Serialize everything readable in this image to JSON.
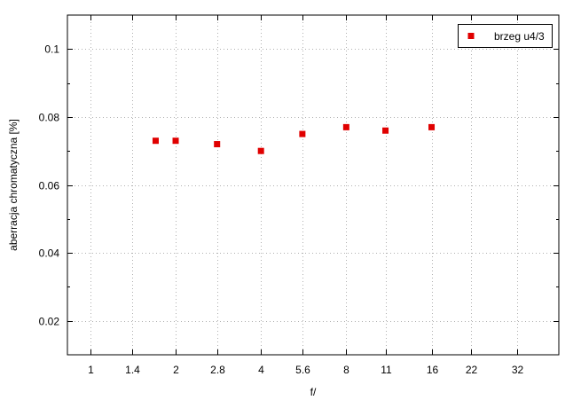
{
  "chart_data": {
    "type": "scatter",
    "title": "",
    "xlabel": "f/",
    "ylabel": "aberracja chromatyczna [%]",
    "x_scale": "log2",
    "x_ticks": [
      "1",
      "1.4",
      "2",
      "2.8",
      "4",
      "5.6",
      "8",
      "11",
      "16",
      "22",
      "32"
    ],
    "xlim_stops": [
      0.83,
      45
    ],
    "ylim": [
      0.01,
      0.11
    ],
    "y_ticks": [
      0.02,
      0.04,
      0.06,
      0.08,
      0.1
    ],
    "y_tick_labels": [
      "0.02",
      "0.04",
      "0.06",
      "0.08",
      "0.1"
    ],
    "grid": true,
    "legend_position": "top-right",
    "series": [
      {
        "name": "brzeg u4/3",
        "color": "#e00000",
        "marker": "square",
        "points": [
          {
            "x": 1.7,
            "y": 0.073
          },
          {
            "x": 2,
            "y": 0.073
          },
          {
            "x": 2.8,
            "y": 0.072
          },
          {
            "x": 4,
            "y": 0.07
          },
          {
            "x": 5.6,
            "y": 0.075
          },
          {
            "x": 8,
            "y": 0.077
          },
          {
            "x": 11,
            "y": 0.076
          },
          {
            "x": 16,
            "y": 0.077
          }
        ]
      }
    ]
  }
}
